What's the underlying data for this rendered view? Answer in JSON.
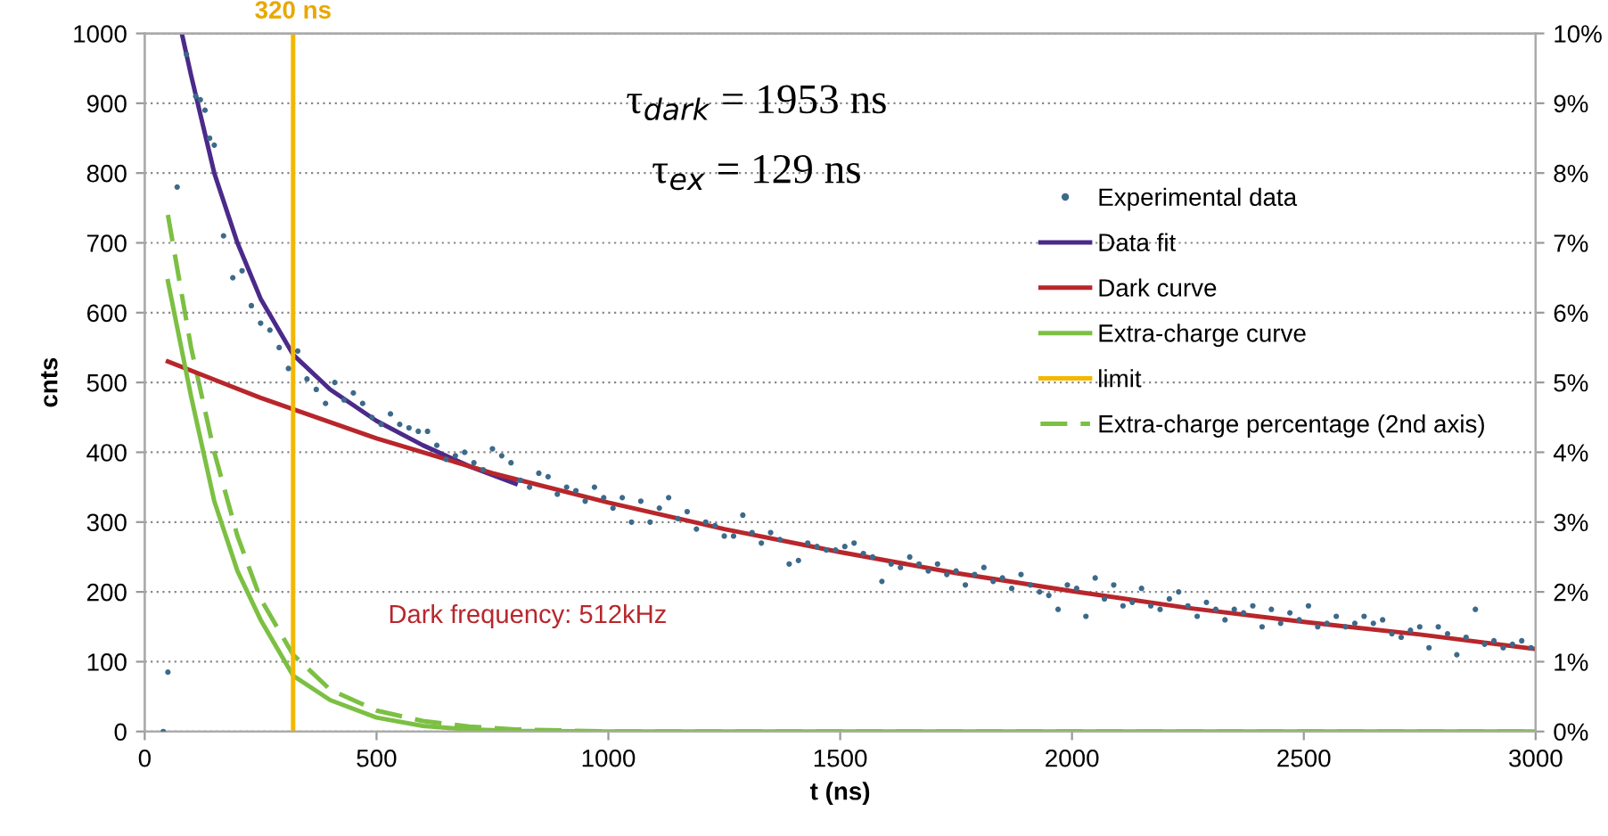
{
  "chart_data": {
    "type": "line",
    "xlabel": "t (ns)",
    "ylabel": "cnts",
    "xlim": [
      0,
      3000
    ],
    "xticks": [
      0,
      500,
      1000,
      1500,
      2000,
      2500,
      3000
    ],
    "ylim": [
      0,
      1000
    ],
    "yticks": [
      0,
      100,
      200,
      300,
      400,
      500,
      600,
      700,
      800,
      900,
      1000
    ],
    "y2lim": [
      0,
      10
    ],
    "y2ticks": [
      {
        "value": 0,
        "label": "0%"
      },
      {
        "value": 1,
        "label": "1%"
      },
      {
        "value": 2,
        "label": "2%"
      },
      {
        "value": 3,
        "label": "3%"
      },
      {
        "value": 4,
        "label": "4%"
      },
      {
        "value": 5,
        "label": "5%"
      },
      {
        "value": 6,
        "label": "6%"
      },
      {
        "value": 7,
        "label": "7%"
      },
      {
        "value": 8,
        "label": "8%"
      },
      {
        "value": 9,
        "label": "9%"
      },
      {
        "value": 10,
        "label": "10%"
      }
    ],
    "grid": "y",
    "legend": "right",
    "annotations": [
      "τ$_{dark}$ = 1953 ns",
      "τ$_{ex}$ = 129 ns",
      "Dark frequency: 512kHz",
      {
        "text": "320 ns",
        "x": 320,
        "y": 1000
      }
    ],
    "series": [
      {
        "name": "Experimental data",
        "type": "scatter",
        "color": "#3d6a8a",
        "x": [
          40,
          50,
          70,
          90,
          110,
          120,
          130,
          140,
          150,
          170,
          190,
          210,
          230,
          250,
          270,
          290,
          310,
          330,
          350,
          370,
          390,
          410,
          430,
          450,
          470,
          490,
          510,
          530,
          550,
          570,
          590,
          610,
          630,
          650,
          670,
          690,
          710,
          730,
          750,
          770,
          790,
          810,
          830,
          850,
          870,
          890,
          910,
          930,
          950,
          970,
          990,
          1010,
          1030,
          1050,
          1070,
          1090,
          1110,
          1130,
          1150,
          1170,
          1190,
          1210,
          1230,
          1250,
          1270,
          1290,
          1310,
          1330,
          1350,
          1370,
          1390,
          1410,
          1430,
          1450,
          1470,
          1490,
          1510,
          1530,
          1550,
          1570,
          1590,
          1610,
          1630,
          1650,
          1670,
          1690,
          1710,
          1730,
          1750,
          1770,
          1790,
          1810,
          1830,
          1850,
          1870,
          1890,
          1910,
          1930,
          1950,
          1970,
          1990,
          2010,
          2030,
          2050,
          2070,
          2090,
          2110,
          2130,
          2150,
          2170,
          2190,
          2210,
          2230,
          2250,
          2270,
          2290,
          2310,
          2330,
          2350,
          2370,
          2390,
          2410,
          2430,
          2450,
          2470,
          2490,
          2510,
          2530,
          2550,
          2570,
          2590,
          2610,
          2630,
          2650,
          2670,
          2690,
          2710,
          2730,
          2750,
          2770,
          2790,
          2810,
          2830,
          2850,
          2870,
          2890,
          2910,
          2930,
          2950,
          2970,
          2990
        ],
        "values": [
          0,
          85,
          780,
          970,
          910,
          905,
          890,
          850,
          840,
          710,
          650,
          660,
          610,
          585,
          575,
          550,
          520,
          545,
          505,
          490,
          470,
          500,
          475,
          485,
          470,
          450,
          440,
          455,
          440,
          435,
          430,
          430,
          410,
          390,
          395,
          400,
          385,
          375,
          405,
          395,
          385,
          360,
          350,
          370,
          365,
          340,
          350,
          345,
          330,
          350,
          335,
          320,
          335,
          300,
          330,
          300,
          320,
          335,
          305,
          315,
          290,
          300,
          295,
          280,
          280,
          310,
          285,
          270,
          285,
          275,
          240,
          245,
          270,
          265,
          260,
          260,
          265,
          270,
          255,
          250,
          215,
          240,
          235,
          250,
          240,
          230,
          240,
          225,
          230,
          210,
          225,
          235,
          215,
          220,
          205,
          225,
          210,
          200,
          195,
          175,
          210,
          205,
          165,
          220,
          190,
          210,
          180,
          185,
          205,
          180,
          175,
          190,
          200,
          180,
          165,
          185,
          175,
          160,
          175,
          170,
          180,
          150,
          175,
          155,
          170,
          160,
          180,
          150,
          155,
          165,
          150,
          155,
          165,
          155,
          160,
          140,
          135,
          145,
          150,
          120,
          150,
          140,
          110,
          135,
          175,
          125,
          130,
          120,
          125,
          130,
          120
        ]
      },
      {
        "name": "Data fit",
        "color": "#4b2a8a",
        "x": [
          80,
          100,
          150,
          200,
          250,
          320,
          400,
          500,
          600,
          700,
          800
        ],
        "values": [
          1000,
          940,
          800,
          700,
          620,
          540,
          490,
          445,
          410,
          380,
          355
        ]
      },
      {
        "name": "Dark curve",
        "color": "#b8262b",
        "x": [
          50,
          250,
          500,
          750,
          1000,
          1250,
          1500,
          1750,
          2000,
          2250,
          2500,
          2750,
          3000
        ],
        "values": [
          530,
          478,
          420,
          370,
          328,
          290,
          257,
          227,
          201,
          177,
          157,
          139,
          118
        ]
      },
      {
        "name": "Extra-charge curve",
        "color": "#7cc043",
        "x": [
          50,
          100,
          150,
          200,
          250,
          320,
          400,
          500,
          600,
          700,
          800,
          1000,
          3000
        ],
        "values": [
          645,
          480,
          330,
          230,
          160,
          80,
          45,
          20,
          8,
          3,
          1,
          0,
          0
        ]
      },
      {
        "name": "limit",
        "color": "#f2b800",
        "x": [
          320,
          320
        ],
        "values": [
          0,
          1000
        ]
      },
      {
        "name": "Extra-charge percentage (2nd axis)",
        "axis": "y2",
        "line_style": "dashed",
        "color": "#7cc043",
        "x": [
          50,
          100,
          150,
          200,
          250,
          320,
          400,
          500,
          600,
          700,
          800,
          1000,
          3000
        ],
        "values": [
          7.4,
          5.5,
          4,
          2.8,
          1.9,
          1.1,
          0.6,
          0.3,
          0.15,
          0.07,
          0.03,
          0,
          0
        ]
      }
    ]
  }
}
